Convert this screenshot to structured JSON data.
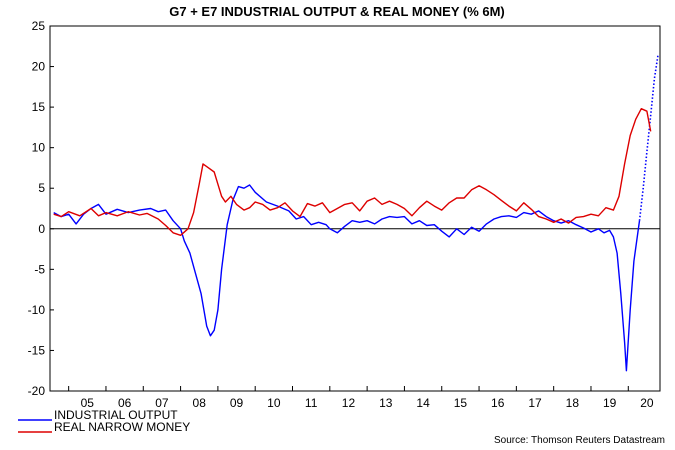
{
  "chart_data": {
    "type": "line",
    "title": "G7 + E7 INDUSTRIAL OUTPUT & REAL MONEY (% 6M)",
    "source": "Source: Thomson Reuters Datastream",
    "xlabel": "",
    "ylabel": "",
    "xlim": [
      2004.5,
      2020.85
    ],
    "ylim": [
      -20,
      25
    ],
    "y_ticks": [
      25,
      20,
      15,
      10,
      5,
      0,
      -5,
      -10,
      -15,
      -20
    ],
    "x_ticks": [
      "05",
      "06",
      "07",
      "08",
      "09",
      "10",
      "11",
      "12",
      "13",
      "14",
      "15",
      "16",
      "17",
      "18",
      "19",
      "20"
    ],
    "grid": false,
    "legend_position": "bottom-left",
    "zero_line": true,
    "colors": {
      "industrial_output": "#0000ff",
      "real_narrow_money": "#dd0000",
      "axis": "#000000"
    },
    "series": [
      {
        "name": "INDUSTRIAL OUTPUT",
        "color": "#0000ff",
        "points": [
          [
            2004.6,
            2.0
          ],
          [
            2004.8,
            1.5
          ],
          [
            2005.0,
            1.8
          ],
          [
            2005.2,
            0.6
          ],
          [
            2005.4,
            1.8
          ],
          [
            2005.6,
            2.5
          ],
          [
            2005.8,
            3.0
          ],
          [
            2006.0,
            1.8
          ],
          [
            2006.3,
            2.4
          ],
          [
            2006.6,
            2.0
          ],
          [
            2006.9,
            2.3
          ],
          [
            2007.2,
            2.5
          ],
          [
            2007.4,
            2.1
          ],
          [
            2007.6,
            2.3
          ],
          [
            2007.8,
            1.0
          ],
          [
            2008.0,
            0.0
          ],
          [
            2008.1,
            -1.5
          ],
          [
            2008.25,
            -3.0
          ],
          [
            2008.4,
            -5.5
          ],
          [
            2008.55,
            -8.0
          ],
          [
            2008.7,
            -12.0
          ],
          [
            2008.8,
            -13.2
          ],
          [
            2008.9,
            -12.5
          ],
          [
            2009.0,
            -10.0
          ],
          [
            2009.1,
            -5.0
          ],
          [
            2009.25,
            0.5
          ],
          [
            2009.4,
            3.5
          ],
          [
            2009.55,
            5.2
          ],
          [
            2009.7,
            5.0
          ],
          [
            2009.85,
            5.4
          ],
          [
            2010.0,
            4.5
          ],
          [
            2010.3,
            3.3
          ],
          [
            2010.6,
            2.8
          ],
          [
            2010.9,
            2.2
          ],
          [
            2011.1,
            1.2
          ],
          [
            2011.3,
            1.5
          ],
          [
            2011.5,
            0.5
          ],
          [
            2011.7,
            0.8
          ],
          [
            2011.9,
            0.5
          ],
          [
            2012.0,
            0.0
          ],
          [
            2012.2,
            -0.5
          ],
          [
            2012.4,
            0.3
          ],
          [
            2012.6,
            1.0
          ],
          [
            2012.8,
            0.8
          ],
          [
            2013.0,
            1.0
          ],
          [
            2013.2,
            0.6
          ],
          [
            2013.4,
            1.2
          ],
          [
            2013.6,
            1.5
          ],
          [
            2013.8,
            1.4
          ],
          [
            2014.0,
            1.5
          ],
          [
            2014.2,
            0.6
          ],
          [
            2014.4,
            1.0
          ],
          [
            2014.6,
            0.4
          ],
          [
            2014.8,
            0.5
          ],
          [
            2015.0,
            -0.3
          ],
          [
            2015.2,
            -1.0
          ],
          [
            2015.4,
            0.0
          ],
          [
            2015.6,
            -0.7
          ],
          [
            2015.8,
            0.2
          ],
          [
            2016.0,
            -0.3
          ],
          [
            2016.2,
            0.6
          ],
          [
            2016.4,
            1.2
          ],
          [
            2016.6,
            1.5
          ],
          [
            2016.8,
            1.6
          ],
          [
            2017.0,
            1.4
          ],
          [
            2017.2,
            2.0
          ],
          [
            2017.4,
            1.8
          ],
          [
            2017.6,
            2.2
          ],
          [
            2017.8,
            1.5
          ],
          [
            2018.0,
            1.0
          ],
          [
            2018.2,
            0.7
          ],
          [
            2018.4,
            1.0
          ],
          [
            2018.6,
            0.5
          ],
          [
            2018.8,
            0.1
          ],
          [
            2019.0,
            -0.4
          ],
          [
            2019.2,
            0.0
          ],
          [
            2019.35,
            -0.5
          ],
          [
            2019.5,
            -0.2
          ],
          [
            2019.6,
            -1.0
          ],
          [
            2019.7,
            -3.0
          ],
          [
            2019.8,
            -8.0
          ],
          [
            2019.9,
            -14.0
          ],
          [
            2019.95,
            -17.5
          ],
          [
            2020.05,
            -10.0
          ],
          [
            2020.15,
            -4.0
          ],
          [
            2020.3,
            1.0
          ]
        ]
      },
      {
        "name": "INDUSTRIAL OUTPUT (projection)",
        "color": "#0000ff",
        "dashed": true,
        "points": [
          [
            2020.3,
            1.0
          ],
          [
            2020.4,
            5.0
          ],
          [
            2020.5,
            9.5
          ],
          [
            2020.6,
            14.0
          ],
          [
            2020.7,
            18.5
          ],
          [
            2020.8,
            21.5
          ]
        ]
      },
      {
        "name": "REAL NARROW MONEY",
        "color": "#dd0000",
        "points": [
          [
            2004.6,
            1.8
          ],
          [
            2004.8,
            1.5
          ],
          [
            2005.0,
            2.1
          ],
          [
            2005.3,
            1.6
          ],
          [
            2005.6,
            2.5
          ],
          [
            2005.8,
            1.6
          ],
          [
            2006.0,
            2.0
          ],
          [
            2006.3,
            1.6
          ],
          [
            2006.6,
            2.1
          ],
          [
            2006.9,
            1.7
          ],
          [
            2007.1,
            1.9
          ],
          [
            2007.4,
            1.2
          ],
          [
            2007.6,
            0.4
          ],
          [
            2007.8,
            -0.5
          ],
          [
            2008.0,
            -0.8
          ],
          [
            2008.2,
            0.0
          ],
          [
            2008.35,
            2.0
          ],
          [
            2008.5,
            5.5
          ],
          [
            2008.6,
            8.0
          ],
          [
            2008.75,
            7.5
          ],
          [
            2008.9,
            7.0
          ],
          [
            2009.0,
            5.5
          ],
          [
            2009.1,
            4.0
          ],
          [
            2009.2,
            3.3
          ],
          [
            2009.35,
            4.0
          ],
          [
            2009.5,
            3.0
          ],
          [
            2009.7,
            2.3
          ],
          [
            2009.85,
            2.6
          ],
          [
            2010.0,
            3.3
          ],
          [
            2010.2,
            3.0
          ],
          [
            2010.4,
            2.3
          ],
          [
            2010.6,
            2.6
          ],
          [
            2010.8,
            3.2
          ],
          [
            2011.0,
            2.2
          ],
          [
            2011.2,
            1.5
          ],
          [
            2011.4,
            3.1
          ],
          [
            2011.6,
            2.8
          ],
          [
            2011.8,
            3.2
          ],
          [
            2012.0,
            2.0
          ],
          [
            2012.2,
            2.5
          ],
          [
            2012.4,
            3.0
          ],
          [
            2012.6,
            3.2
          ],
          [
            2012.8,
            2.2
          ],
          [
            2013.0,
            3.4
          ],
          [
            2013.2,
            3.8
          ],
          [
            2013.4,
            3.0
          ],
          [
            2013.6,
            3.4
          ],
          [
            2013.8,
            3.0
          ],
          [
            2014.0,
            2.5
          ],
          [
            2014.2,
            1.6
          ],
          [
            2014.4,
            2.6
          ],
          [
            2014.6,
            3.4
          ],
          [
            2014.8,
            2.8
          ],
          [
            2015.0,
            2.3
          ],
          [
            2015.2,
            3.2
          ],
          [
            2015.4,
            3.8
          ],
          [
            2015.6,
            3.8
          ],
          [
            2015.8,
            4.8
          ],
          [
            2016.0,
            5.3
          ],
          [
            2016.2,
            4.8
          ],
          [
            2016.4,
            4.2
          ],
          [
            2016.6,
            3.5
          ],
          [
            2016.8,
            2.8
          ],
          [
            2017.0,
            2.2
          ],
          [
            2017.2,
            3.2
          ],
          [
            2017.4,
            2.4
          ],
          [
            2017.6,
            1.5
          ],
          [
            2017.8,
            1.2
          ],
          [
            2018.0,
            0.8
          ],
          [
            2018.2,
            1.2
          ],
          [
            2018.4,
            0.7
          ],
          [
            2018.6,
            1.4
          ],
          [
            2018.8,
            1.5
          ],
          [
            2019.0,
            1.8
          ],
          [
            2019.2,
            1.6
          ],
          [
            2019.4,
            2.6
          ],
          [
            2019.6,
            2.3
          ],
          [
            2019.75,
            4.0
          ],
          [
            2019.9,
            8.0
          ],
          [
            2020.05,
            11.5
          ],
          [
            2020.2,
            13.5
          ],
          [
            2020.35,
            14.8
          ],
          [
            2020.5,
            14.5
          ],
          [
            2020.6,
            12.0
          ]
        ]
      }
    ]
  }
}
